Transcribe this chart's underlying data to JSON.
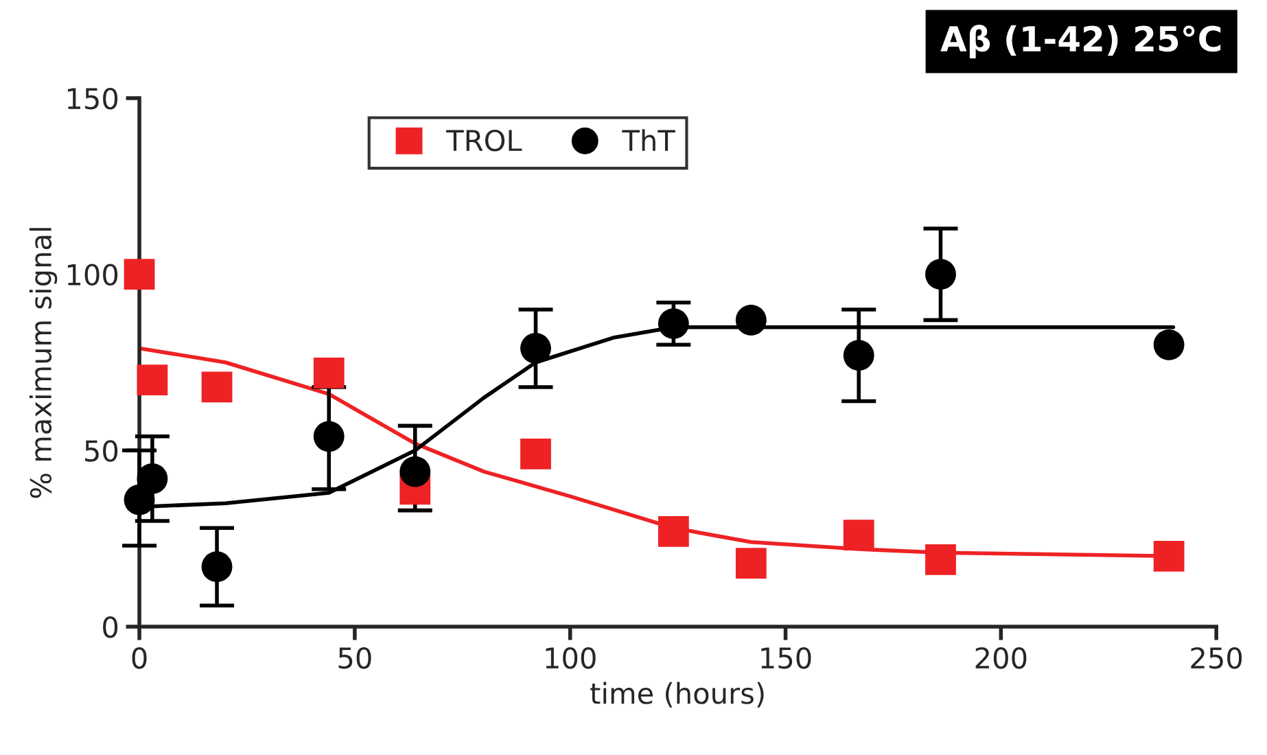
{
  "chart_data": {
    "type": "scatter",
    "title": "Aβ (1-42) 25°C",
    "xlabel": "time (hours)",
    "ylabel": "% maximum signal",
    "xlim": [
      0,
      250
    ],
    "xticks": [
      0,
      50,
      100,
      150,
      200,
      250
    ],
    "ylim": [
      0,
      150
    ],
    "yticks": [
      0,
      50,
      100,
      150
    ],
    "grid": false,
    "legend": "top left",
    "series": [
      {
        "name": "TROL",
        "marker": "square",
        "color": "#ee2224",
        "x": [
          0,
          3,
          18,
          44,
          64,
          92,
          124,
          142,
          167,
          186,
          239
        ],
        "values": [
          100,
          70,
          68,
          72,
          39,
          49,
          27,
          18,
          26,
          19,
          20
        ]
      },
      {
        "name": "ThT",
        "marker": "circle",
        "color": "#000000",
        "x": [
          0,
          3,
          18,
          44,
          64,
          92,
          124,
          142,
          167,
          186,
          239
        ],
        "values": [
          36,
          42,
          17,
          54,
          44,
          79,
          86,
          87,
          77,
          100,
          80
        ],
        "errors": [
          [
            23,
            50
          ],
          [
            30,
            54
          ],
          [
            6,
            28
          ],
          [
            39,
            68
          ],
          [
            33,
            57
          ],
          [
            68,
            90
          ],
          [
            80,
            92
          ],
          null,
          [
            64,
            90
          ],
          [
            87,
            113
          ],
          null
        ]
      },
      {
        "type": "line",
        "marker": "none",
        "line_style": "solid",
        "color": "#ee2224",
        "x": [
          0,
          20,
          44,
          64,
          80,
          100,
          124,
          142,
          167,
          186,
          240
        ],
        "values": [
          79,
          75,
          66,
          52,
          44,
          37,
          28,
          24,
          22,
          21,
          20
        ]
      },
      {
        "type": "line",
        "marker": "none",
        "line_style": "solid",
        "color": "#000000",
        "x": [
          0,
          20,
          44,
          64,
          80,
          92,
          110,
          124,
          142,
          240
        ],
        "values": [
          34,
          35,
          38,
          50,
          65,
          75,
          82,
          85,
          85,
          85
        ]
      }
    ]
  }
}
